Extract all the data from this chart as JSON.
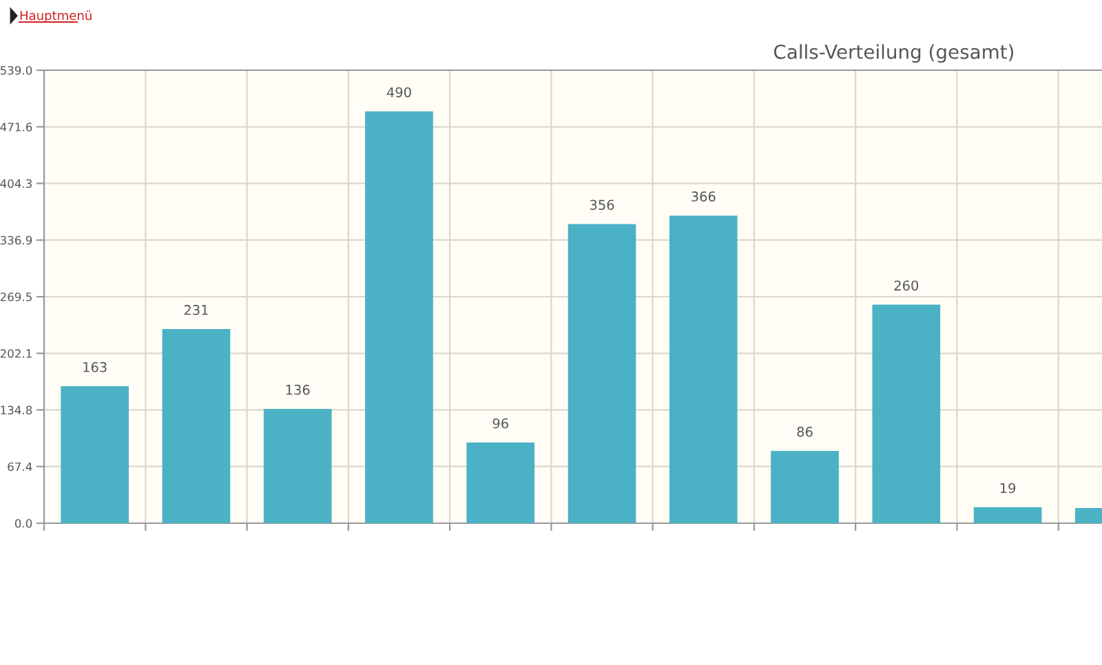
{
  "chart_data": {
    "type": "bar",
    "title": "Calls-Verteilung (gesamt)",
    "categories": [
      null,
      null,
      null,
      null,
      null,
      null,
      null,
      null,
      null,
      null,
      null
    ],
    "values": [
      163,
      231,
      136,
      490,
      96,
      356,
      366,
      86,
      260,
      19,
      18
    ],
    "value_labels": [
      "163",
      "231",
      "136",
      "490",
      "96",
      "356",
      "366",
      "86",
      "260",
      "19",
      null
    ],
    "color": "#4bb2c5",
    "ylim": [
      0,
      539
    ],
    "yticks": [
      {
        "value": 0,
        "label": "0.0"
      },
      {
        "value": 67.4,
        "label": "67.4"
      },
      {
        "value": 134.8,
        "label": "134.8"
      },
      {
        "value": 202.1,
        "label": "202.1"
      },
      {
        "value": 269.5,
        "label": "269.5"
      },
      {
        "value": 336.9,
        "label": "336.9"
      },
      {
        "value": 404.3,
        "label": "404.3"
      },
      {
        "value": 471.6,
        "label": "471.6"
      },
      {
        "value": 539,
        "label": "539.0"
      }
    ],
    "grid": true,
    "annotations": [
      "Hauptmenü"
    ]
  }
}
